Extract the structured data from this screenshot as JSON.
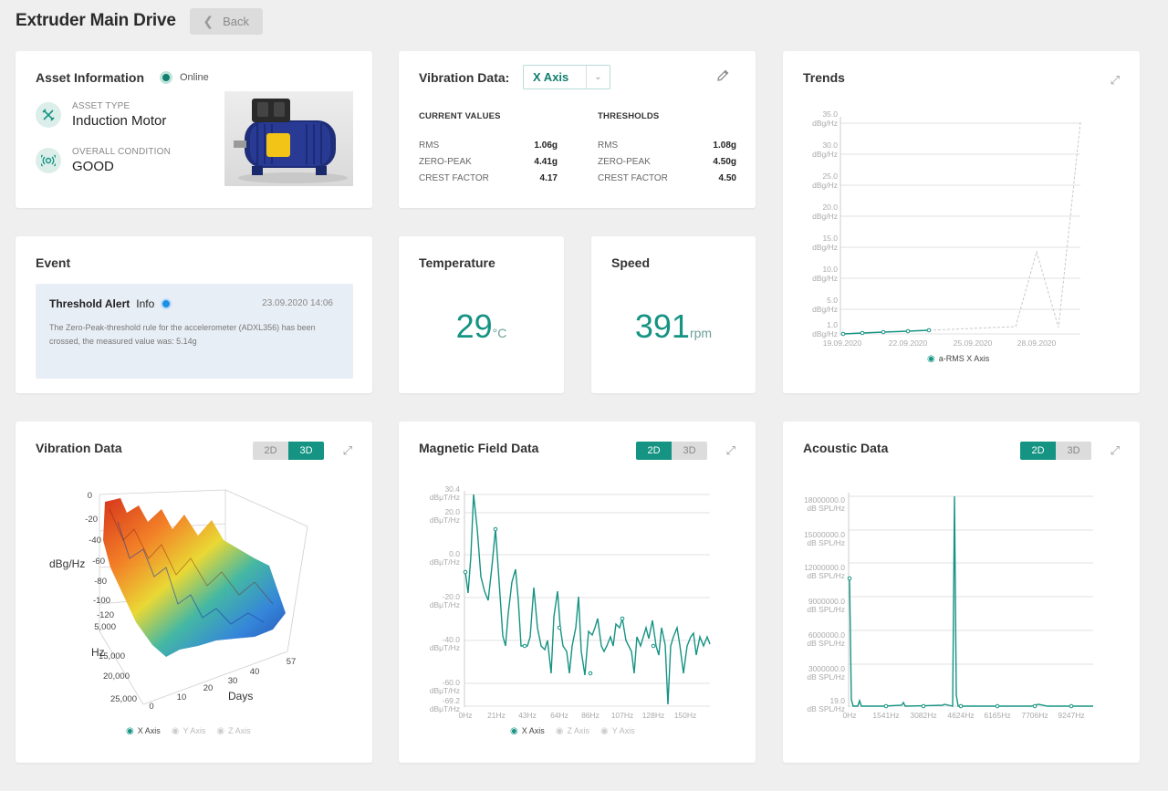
{
  "header": {
    "title": "Extruder Main Drive",
    "back_label": "Back"
  },
  "asset": {
    "title": "Asset Information",
    "status": "Online",
    "type_label": "ASSET TYPE",
    "type_value": "Induction Motor",
    "condition_label": "OVERALL CONDITION",
    "condition_value": "GOOD"
  },
  "vibration_summary": {
    "title": "Vibration Data:",
    "axis": "X Axis",
    "current_header": "CURRENT VALUES",
    "threshold_header": "THRESHOLDS",
    "current": [
      {
        "label": "RMS",
        "value": "1.06g"
      },
      {
        "label": "ZERO-PEAK",
        "value": "4.41g"
      },
      {
        "label": "CREST FACTOR",
        "value": "4.17"
      }
    ],
    "thresholds": [
      {
        "label": "RMS",
        "value": "1.08g"
      },
      {
        "label": "ZERO-PEAK",
        "value": "4.50g"
      },
      {
        "label": "CREST FACTOR",
        "value": "4.50"
      }
    ]
  },
  "trends": {
    "title": "Trends",
    "legend": "a-RMS X Axis",
    "ticks": [
      "35.0",
      "30.0",
      "25.0",
      "20.0",
      "15.0",
      "10.0",
      "5.0",
      "1.0"
    ],
    "unit": "dBg/Hz",
    "dates": [
      "19.09.2020",
      "22.09.2020",
      "25.09.2020",
      "28.09.2020"
    ]
  },
  "event": {
    "title": "Event",
    "alert": "Threshold Alert",
    "level": "Info",
    "date": "23.09.2020 14:06",
    "text": "The Zero-Peak-threshold rule for the accelerometer (ADXL356) has been crossed, the measured value was: 5.14g"
  },
  "temperature": {
    "title": "Temperature",
    "value": "29",
    "unit": "°C"
  },
  "speed": {
    "title": "Speed",
    "value": "391",
    "unit": "rpm"
  },
  "vib3d": {
    "title": "Vibration Data",
    "toggle_2d": "2D",
    "toggle_3d": "3D",
    "zlabel": "dBg/Hz",
    "zticks": [
      "0",
      "-20",
      "-40",
      "-60",
      "-80",
      "-100",
      "-120"
    ],
    "hzlabel": "Hz",
    "hzticks": [
      "5,000",
      "15,000",
      "20,000",
      "25,000"
    ],
    "dayslabel": "Days",
    "dayticks": [
      "0",
      "10",
      "20",
      "30",
      "40",
      "57"
    ],
    "legend": [
      "X Axis",
      "Y Axis",
      "Z Axis"
    ]
  },
  "magnetic": {
    "title": "Magnetic Field Data",
    "toggle_2d": "2D",
    "toggle_3d": "3D",
    "unit": "dBμT/Hz",
    "ticks": [
      "30.4",
      "20.0",
      "0.0",
      "-20.0",
      "-40.0",
      "-60.0",
      "-69.2"
    ],
    "xticks": [
      "0Hz",
      "21Hz",
      "43Hz",
      "64Hz",
      "86Hz",
      "107Hz",
      "128Hz",
      "150Hz"
    ],
    "legend": [
      "X Axis",
      "Z Axis",
      "Y Axis"
    ]
  },
  "acoustic": {
    "title": "Acoustic Data",
    "toggle_2d": "2D",
    "toggle_3d": "3D",
    "unit": "dB SPL/Hz",
    "ticks": [
      "18000000.0",
      "15000000.0",
      "12000000.0",
      "9000000.0",
      "6000000.0",
      "3000000.0",
      "19.0"
    ],
    "xticks": [
      "0Hz",
      "1541Hz",
      "3082Hz",
      "4624Hz",
      "6165Hz",
      "7706Hz",
      "9247Hz"
    ]
  },
  "colors": {
    "accent": "#159383",
    "alert": "#1b8fe6"
  }
}
